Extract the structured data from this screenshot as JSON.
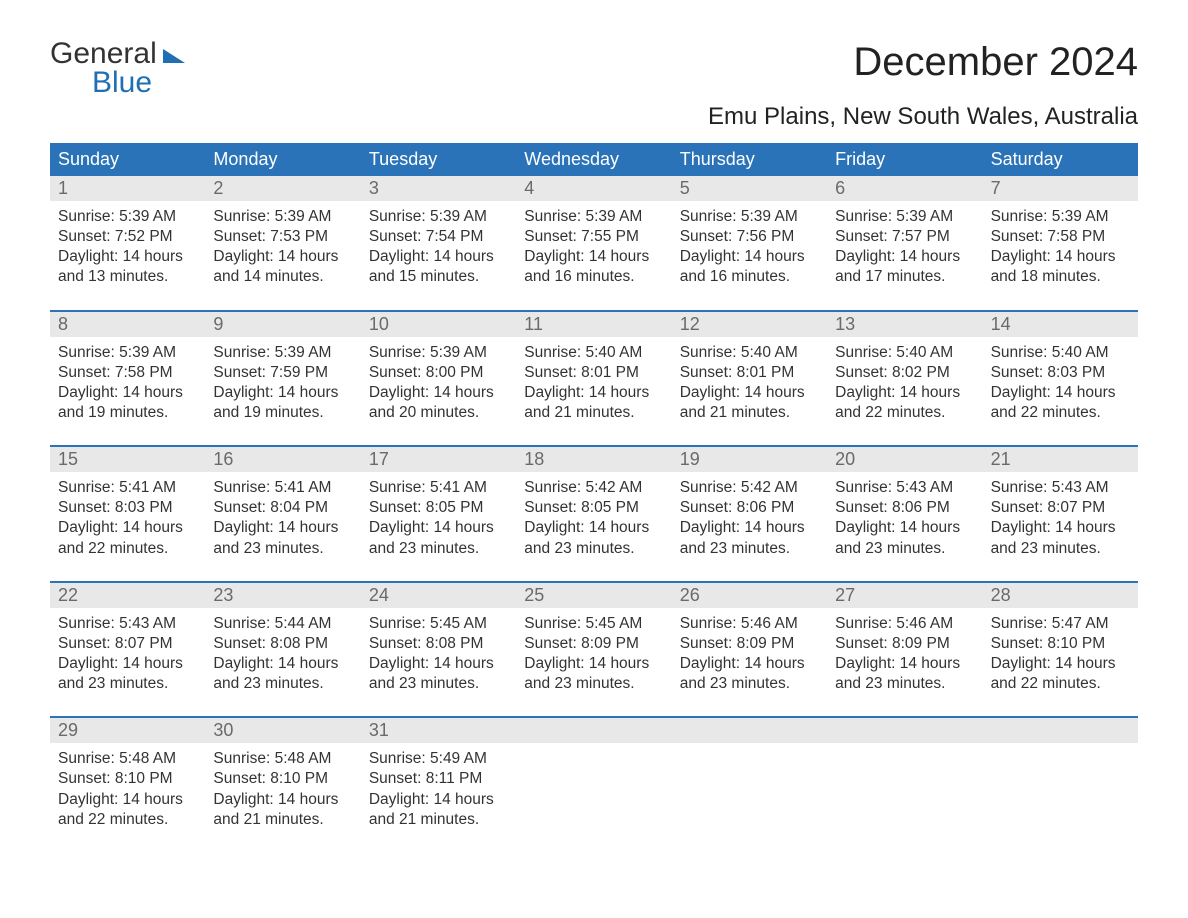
{
  "logo": {
    "word1": "General",
    "word2": "Blue"
  },
  "title": "December 2024",
  "subtitle": "Emu Plains, New South Wales, Australia",
  "style": {
    "header_bg": "#2a73b8",
    "header_text": "#ffffff",
    "row_sep": "#2a73b8",
    "daynum_bg": "#e8e8e8",
    "daynum_color": "#6a6a6a",
    "body_text": "#333333",
    "background": "#ffffff",
    "title_fontsize": 40,
    "subtitle_fontsize": 24,
    "dow_fontsize": 18,
    "cell_fontsize": 15.5
  },
  "days_of_week": [
    "Sunday",
    "Monday",
    "Tuesday",
    "Wednesday",
    "Thursday",
    "Friday",
    "Saturday"
  ],
  "weeks": [
    [
      {
        "n": "1",
        "sunrise": "5:39 AM",
        "sunset": "7:52 PM",
        "daylight": "14 hours and 13 minutes."
      },
      {
        "n": "2",
        "sunrise": "5:39 AM",
        "sunset": "7:53 PM",
        "daylight": "14 hours and 14 minutes."
      },
      {
        "n": "3",
        "sunrise": "5:39 AM",
        "sunset": "7:54 PM",
        "daylight": "14 hours and 15 minutes."
      },
      {
        "n": "4",
        "sunrise": "5:39 AM",
        "sunset": "7:55 PM",
        "daylight": "14 hours and 16 minutes."
      },
      {
        "n": "5",
        "sunrise": "5:39 AM",
        "sunset": "7:56 PM",
        "daylight": "14 hours and 16 minutes."
      },
      {
        "n": "6",
        "sunrise": "5:39 AM",
        "sunset": "7:57 PM",
        "daylight": "14 hours and 17 minutes."
      },
      {
        "n": "7",
        "sunrise": "5:39 AM",
        "sunset": "7:58 PM",
        "daylight": "14 hours and 18 minutes."
      }
    ],
    [
      {
        "n": "8",
        "sunrise": "5:39 AM",
        "sunset": "7:58 PM",
        "daylight": "14 hours and 19 minutes."
      },
      {
        "n": "9",
        "sunrise": "5:39 AM",
        "sunset": "7:59 PM",
        "daylight": "14 hours and 19 minutes."
      },
      {
        "n": "10",
        "sunrise": "5:39 AM",
        "sunset": "8:00 PM",
        "daylight": "14 hours and 20 minutes."
      },
      {
        "n": "11",
        "sunrise": "5:40 AM",
        "sunset": "8:01 PM",
        "daylight": "14 hours and 21 minutes."
      },
      {
        "n": "12",
        "sunrise": "5:40 AM",
        "sunset": "8:01 PM",
        "daylight": "14 hours and 21 minutes."
      },
      {
        "n": "13",
        "sunrise": "5:40 AM",
        "sunset": "8:02 PM",
        "daylight": "14 hours and 22 minutes."
      },
      {
        "n": "14",
        "sunrise": "5:40 AM",
        "sunset": "8:03 PM",
        "daylight": "14 hours and 22 minutes."
      }
    ],
    [
      {
        "n": "15",
        "sunrise": "5:41 AM",
        "sunset": "8:03 PM",
        "daylight": "14 hours and 22 minutes."
      },
      {
        "n": "16",
        "sunrise": "5:41 AM",
        "sunset": "8:04 PM",
        "daylight": "14 hours and 23 minutes."
      },
      {
        "n": "17",
        "sunrise": "5:41 AM",
        "sunset": "8:05 PM",
        "daylight": "14 hours and 23 minutes."
      },
      {
        "n": "18",
        "sunrise": "5:42 AM",
        "sunset": "8:05 PM",
        "daylight": "14 hours and 23 minutes."
      },
      {
        "n": "19",
        "sunrise": "5:42 AM",
        "sunset": "8:06 PM",
        "daylight": "14 hours and 23 minutes."
      },
      {
        "n": "20",
        "sunrise": "5:43 AM",
        "sunset": "8:06 PM",
        "daylight": "14 hours and 23 minutes."
      },
      {
        "n": "21",
        "sunrise": "5:43 AM",
        "sunset": "8:07 PM",
        "daylight": "14 hours and 23 minutes."
      }
    ],
    [
      {
        "n": "22",
        "sunrise": "5:43 AM",
        "sunset": "8:07 PM",
        "daylight": "14 hours and 23 minutes."
      },
      {
        "n": "23",
        "sunrise": "5:44 AM",
        "sunset": "8:08 PM",
        "daylight": "14 hours and 23 minutes."
      },
      {
        "n": "24",
        "sunrise": "5:45 AM",
        "sunset": "8:08 PM",
        "daylight": "14 hours and 23 minutes."
      },
      {
        "n": "25",
        "sunrise": "5:45 AM",
        "sunset": "8:09 PM",
        "daylight": "14 hours and 23 minutes."
      },
      {
        "n": "26",
        "sunrise": "5:46 AM",
        "sunset": "8:09 PM",
        "daylight": "14 hours and 23 minutes."
      },
      {
        "n": "27",
        "sunrise": "5:46 AM",
        "sunset": "8:09 PM",
        "daylight": "14 hours and 23 minutes."
      },
      {
        "n": "28",
        "sunrise": "5:47 AM",
        "sunset": "8:10 PM",
        "daylight": "14 hours and 22 minutes."
      }
    ],
    [
      {
        "n": "29",
        "sunrise": "5:48 AM",
        "sunset": "8:10 PM",
        "daylight": "14 hours and 22 minutes."
      },
      {
        "n": "30",
        "sunrise": "5:48 AM",
        "sunset": "8:10 PM",
        "daylight": "14 hours and 21 minutes."
      },
      {
        "n": "31",
        "sunrise": "5:49 AM",
        "sunset": "8:11 PM",
        "daylight": "14 hours and 21 minutes."
      },
      null,
      null,
      null,
      null
    ]
  ],
  "labels": {
    "sunrise": "Sunrise:",
    "sunset": "Sunset:",
    "daylight": "Daylight:"
  }
}
